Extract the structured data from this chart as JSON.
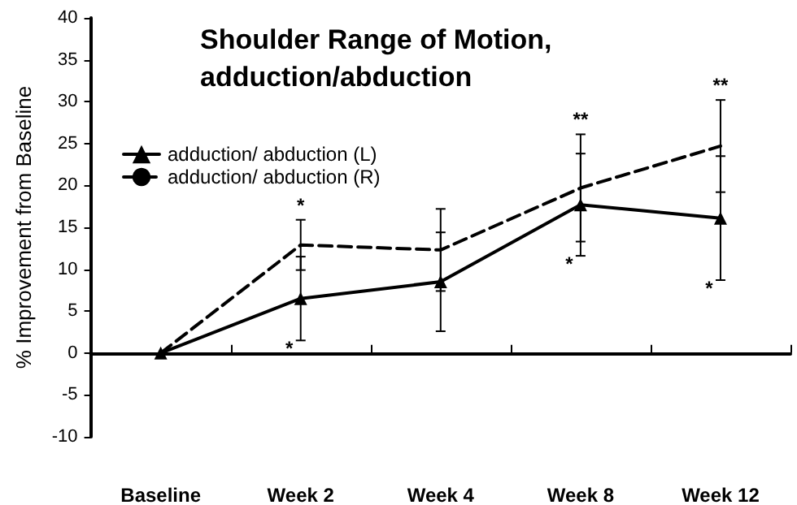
{
  "chart_data": {
    "type": "line",
    "title": "Shoulder Range of Motion, adduction/abduction",
    "ylabel": "% Improvement from Baseline",
    "categories": [
      "Baseline",
      "Week 2",
      "Week 4",
      "Week 8",
      "Week 12"
    ],
    "series": [
      {
        "name": "adduction/ abduction (L)",
        "color": "#000000",
        "values": [
          0,
          6.5,
          8.5,
          17.7,
          16.1
        ],
        "errors": [
          null,
          5,
          5.9,
          6.1,
          7.4
        ],
        "marker": "triangle",
        "line_style": "solid"
      },
      {
        "name": "adduction/ abduction (R)",
        "color": "#000000",
        "values": [
          0,
          12.9,
          12.3,
          19.7,
          24.7
        ],
        "errors": [
          null,
          3,
          4.9,
          6.4,
          5.5
        ],
        "marker": "none",
        "line_style": "dashed"
      }
    ],
    "ylim": [
      -10,
      40
    ],
    "yticks": [
      -10,
      -5,
      0,
      5,
      10,
      15,
      20,
      25,
      30,
      35,
      40
    ],
    "legend": "top left",
    "annotations": [
      {
        "text": "*",
        "x": "Week 2",
        "y": 15.9
      },
      {
        "text": "*",
        "x": "Week 2",
        "y": 1.5
      },
      {
        "text": "**",
        "x": "Week 8",
        "y": 26.1
      },
      {
        "text": "*",
        "x": "Week 8",
        "y": 11.6
      },
      {
        "text": "**",
        "x": "Week 12",
        "y": 30.2
      },
      {
        "text": "*",
        "x": "Week 12",
        "y": 8.7
      }
    ]
  }
}
